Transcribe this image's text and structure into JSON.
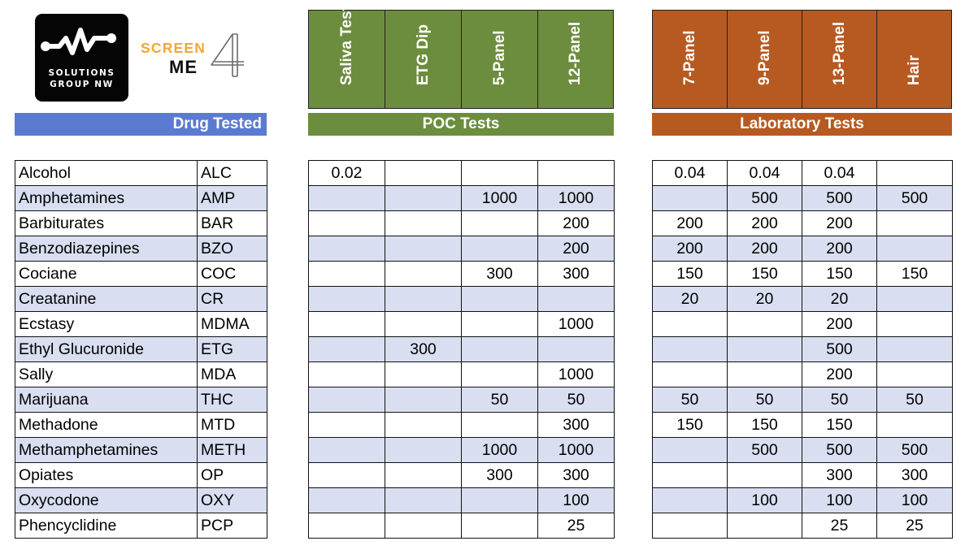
{
  "logo": {
    "line1": "SOLUTIONS",
    "line2": "GROUP NW",
    "screen": "SCREEN",
    "me": "ME",
    "four": "4"
  },
  "headers": {
    "drug_tested": "Drug Tested",
    "poc": "POC Tests",
    "lab": "Laboratory Tests"
  },
  "poc_columns": [
    "Saliva Test",
    "ETG Dip",
    "5-Panel",
    "12-Panel"
  ],
  "lab_columns": [
    "7-Panel",
    "9-Panel",
    "13-Panel",
    "Hair"
  ],
  "colors": {
    "drug_bar": "#5b7bd1",
    "poc_green": "#6c8d3d",
    "lab_orange": "#b75a22",
    "row_shade": "#d9dff1",
    "screen_orange": "#f5a533"
  },
  "rows": [
    {
      "name": "Alcohol",
      "code": "ALC",
      "poc": [
        "0.02",
        "",
        "",
        ""
      ],
      "lab": [
        "0.04",
        "0.04",
        "0.04",
        ""
      ]
    },
    {
      "name": "Amphetamines",
      "code": "AMP",
      "poc": [
        "",
        "",
        "1000",
        "1000"
      ],
      "lab": [
        "",
        "500",
        "500",
        "500"
      ]
    },
    {
      "name": "Barbiturates",
      "code": "BAR",
      "poc": [
        "",
        "",
        "",
        "200"
      ],
      "lab": [
        "200",
        "200",
        "200",
        ""
      ]
    },
    {
      "name": "Benzodiazepines",
      "code": "BZO",
      "poc": [
        "",
        "",
        "",
        "200"
      ],
      "lab": [
        "200",
        "200",
        "200",
        ""
      ]
    },
    {
      "name": "Cociane",
      "code": "COC",
      "poc": [
        "",
        "",
        "300",
        "300"
      ],
      "lab": [
        "150",
        "150",
        "150",
        "150"
      ]
    },
    {
      "name": "Creatanine",
      "code": "CR",
      "poc": [
        "",
        "",
        "",
        ""
      ],
      "lab": [
        "20",
        "20",
        "20",
        ""
      ]
    },
    {
      "name": "Ecstasy",
      "code": "MDMA",
      "poc": [
        "",
        "",
        "",
        "1000"
      ],
      "lab": [
        "",
        "",
        "200",
        ""
      ]
    },
    {
      "name": "Ethyl Glucuronide",
      "code": "ETG",
      "poc": [
        "",
        "300",
        "",
        ""
      ],
      "lab": [
        "",
        "",
        "500",
        ""
      ]
    },
    {
      "name": "Sally",
      "code": "MDA",
      "poc": [
        "",
        "",
        "",
        "1000"
      ],
      "lab": [
        "",
        "",
        "200",
        ""
      ]
    },
    {
      "name": "Marijuana",
      "code": "THC",
      "poc": [
        "",
        "",
        "50",
        "50"
      ],
      "lab": [
        "50",
        "50",
        "50",
        "50"
      ]
    },
    {
      "name": "Methadone",
      "code": "MTD",
      "poc": [
        "",
        "",
        "",
        "300"
      ],
      "lab": [
        "150",
        "150",
        "150",
        ""
      ]
    },
    {
      "name": "Methamphetamines",
      "code": "METH",
      "poc": [
        "",
        "",
        "1000",
        "1000"
      ],
      "lab": [
        "",
        "500",
        "500",
        "500"
      ]
    },
    {
      "name": "Opiates",
      "code": "OP",
      "poc": [
        "",
        "",
        "300",
        "300"
      ],
      "lab": [
        "",
        "",
        "300",
        "300"
      ]
    },
    {
      "name": "Oxycodone",
      "code": "OXY",
      "poc": [
        "",
        "",
        "",
        "100"
      ],
      "lab": [
        "",
        "100",
        "100",
        "100"
      ]
    },
    {
      "name": "Phencyclidine",
      "code": "PCP",
      "poc": [
        "",
        "",
        "",
        "25"
      ],
      "lab": [
        "",
        "",
        "25",
        "25"
      ]
    }
  ]
}
